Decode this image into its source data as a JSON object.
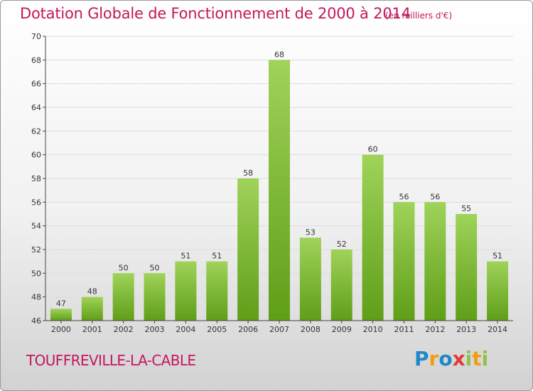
{
  "title": "Dotation Globale de Fonctionnement de 2000 à 2014",
  "unit": "(en milliers d'€)",
  "commune": "TOUFFREVILLE-LA-CABLE",
  "logo": {
    "text": "Proxiti",
    "letters": [
      {
        "ch": "P",
        "color": "#1e88c8"
      },
      {
        "ch": "r",
        "color": "#f39c12"
      },
      {
        "ch": "o",
        "color": "#1e88c8"
      },
      {
        "ch": "x",
        "color": "#e53935"
      },
      {
        "ch": "i",
        "color": "#8bc34a"
      },
      {
        "ch": "t",
        "color": "#f39c12"
      },
      {
        "ch": "i",
        "color": "#8bc34a"
      }
    ]
  },
  "colors": {
    "title": "#c2185b",
    "bar_top": "#9fd35a",
    "bar_bottom": "#5f9e17",
    "grid": "#dddddd",
    "axis": "#444444"
  },
  "chart_data": {
    "type": "bar",
    "categories": [
      "2000",
      "2001",
      "2002",
      "2003",
      "2004",
      "2005",
      "2006",
      "2007",
      "2008",
      "2009",
      "2010",
      "2011",
      "2012",
      "2013",
      "2014"
    ],
    "values": [
      47,
      48,
      50,
      50,
      51,
      51,
      58,
      68,
      53,
      52,
      60,
      56,
      56,
      55,
      51
    ],
    "ylim": [
      46,
      70
    ],
    "yticks": [
      46,
      48,
      50,
      52,
      54,
      56,
      58,
      60,
      62,
      64,
      66,
      68,
      70
    ],
    "grid": true,
    "legend": "none"
  }
}
